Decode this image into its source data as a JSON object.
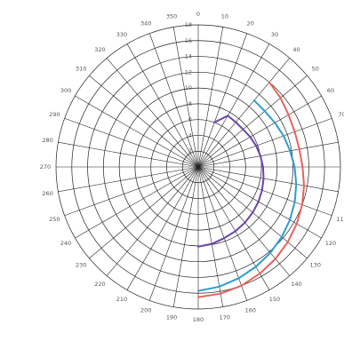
{
  "chart_data": {
    "type": "line",
    "projection": "polar",
    "angular_axis": {
      "direction": "clockwise",
      "zero_at": "top",
      "tick_step": 10,
      "tick_labels": [
        "0",
        "10",
        "20",
        "30",
        "40",
        "50",
        "60",
        "70",
        "80",
        "90",
        "100",
        "110",
        "120",
        "130",
        "140",
        "150",
        "160",
        "170",
        "180",
        "190",
        "200",
        "210",
        "220",
        "230",
        "240",
        "250",
        "260",
        "270",
        "280",
        "290",
        "300",
        "310",
        "320",
        "330",
        "340",
        "350"
      ]
    },
    "radial_axis": {
      "range": [
        0,
        18
      ],
      "tick_labels": [
        "2",
        "4",
        "6",
        "8",
        "10",
        "12",
        "14",
        "16",
        "18"
      ],
      "grid": true
    },
    "series": [
      {
        "color": "#e8625f",
        "points": [
          [
            40,
            14
          ],
          [
            50,
            13.6
          ],
          [
            60,
            13.2
          ],
          [
            70,
            13
          ],
          [
            80,
            13
          ],
          [
            90,
            13.2
          ],
          [
            100,
            13.6
          ],
          [
            110,
            14
          ],
          [
            120,
            14.4
          ],
          [
            130,
            14.8
          ],
          [
            140,
            15.2
          ],
          [
            150,
            15.6
          ],
          [
            160,
            16
          ],
          [
            170,
            16.3
          ],
          [
            180,
            16.5
          ]
        ]
      },
      {
        "color": "#2e9bd0",
        "points": [
          [
            40,
            11
          ],
          [
            50,
            11
          ],
          [
            60,
            11.2
          ],
          [
            70,
            11.5
          ],
          [
            80,
            11.8
          ],
          [
            90,
            12.2
          ],
          [
            100,
            12.6
          ],
          [
            110,
            13
          ],
          [
            120,
            13.4
          ],
          [
            130,
            13.8
          ],
          [
            140,
            14.2
          ],
          [
            150,
            14.6
          ],
          [
            160,
            15
          ],
          [
            170,
            15.4
          ],
          [
            180,
            15.7
          ]
        ]
      },
      {
        "color": "#6a45a8",
        "points": [
          [
            20,
            6
          ],
          [
            30,
            7.5
          ],
          [
            40,
            7.4
          ],
          [
            50,
            7.4
          ],
          [
            60,
            7.6
          ],
          [
            70,
            7.8
          ],
          [
            80,
            8
          ],
          [
            90,
            8.2
          ],
          [
            100,
            8.4
          ],
          [
            110,
            8.6
          ],
          [
            120,
            8.8
          ],
          [
            130,
            9
          ],
          [
            140,
            9.2
          ],
          [
            150,
            9.4
          ],
          [
            160,
            9.6
          ],
          [
            170,
            9.9
          ],
          [
            180,
            10.1
          ]
        ]
      }
    ]
  }
}
